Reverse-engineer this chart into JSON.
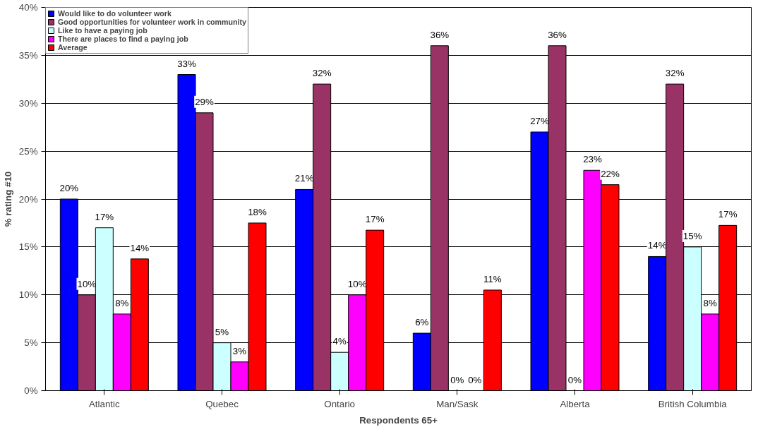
{
  "chart_data": {
    "type": "bar",
    "xlabel": "Respondents 65+",
    "ylabel": "% rating #10",
    "categories": [
      "Atlantic",
      "Quebec",
      "Ontario",
      "Man/Sask",
      "Alberta",
      "British Columbia"
    ],
    "series": [
      {
        "name": "Would like to do volunteer work",
        "color": "#0000ff",
        "values": [
          20,
          33,
          21,
          6,
          27,
          14
        ],
        "value_labels": [
          "20%",
          "33%",
          "21%",
          "6%",
          "27%",
          "14%"
        ]
      },
      {
        "name": "Good opportunities for volunteer work in community",
        "color": "#993366",
        "values": [
          10,
          29,
          32,
          36,
          36,
          32
        ],
        "value_labels": [
          "10%",
          "29%",
          "32%",
          "36%",
          "36%",
          "32%"
        ]
      },
      {
        "name": "Like to have a paying job",
        "color": "#ccffff",
        "values": [
          17,
          5,
          4,
          0,
          0,
          15
        ],
        "value_labels": [
          "17%",
          "5%",
          "4%",
          "0%",
          "0%",
          "15%"
        ]
      },
      {
        "name": "There are places to find a paying job",
        "color": "#ff00ff",
        "values": [
          8,
          3,
          10,
          0,
          23,
          8
        ],
        "value_labels": [
          "8%",
          "3%",
          "10%",
          "0%",
          "23%",
          "8%"
        ]
      },
      {
        "name": "Average",
        "color": "#ff0000",
        "values": [
          13.75,
          17.5,
          16.75,
          10.5,
          21.5,
          17.25
        ],
        "value_labels": [
          "14%",
          "18%",
          "17%",
          "11%",
          "22%",
          "17%"
        ]
      }
    ],
    "ylim": [
      0,
      40
    ],
    "yticks": [
      {
        "value": 0,
        "label": "0%"
      },
      {
        "value": 5,
        "label": "5%"
      },
      {
        "value": 10,
        "label": "10%"
      },
      {
        "value": 15,
        "label": "15%"
      },
      {
        "value": 20,
        "label": "20%"
      },
      {
        "value": 25,
        "label": "25%"
      },
      {
        "value": 30,
        "label": "30%"
      },
      {
        "value": 35,
        "label": "35%"
      },
      {
        "value": 40,
        "label": "40%"
      }
    ],
    "grid": "y",
    "legend": "top left"
  }
}
